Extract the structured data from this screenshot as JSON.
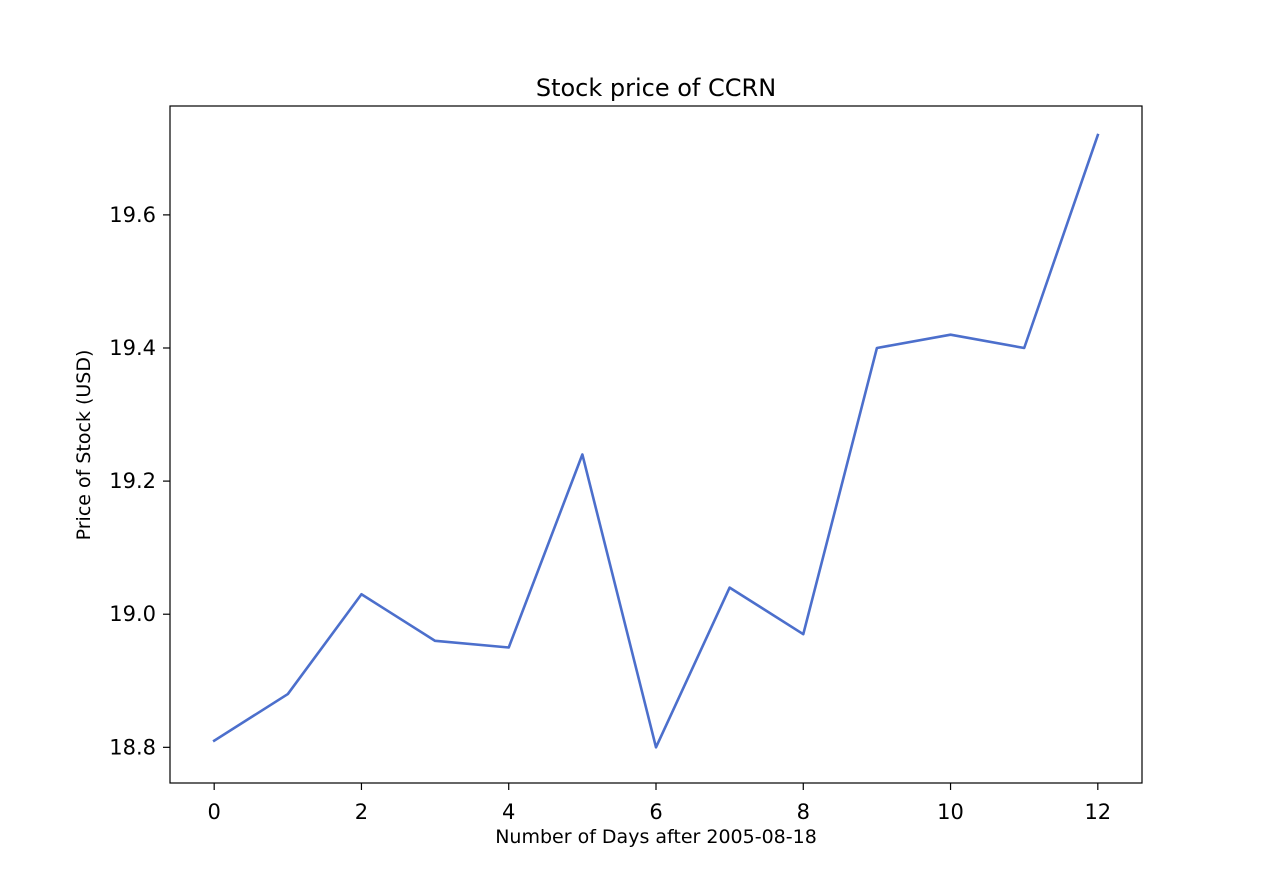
{
  "chart_data": {
    "type": "line",
    "title": "Stock price of CCRN",
    "xlabel": "Number of Days after 2005-08-18",
    "ylabel": "Price of Stock (USD)",
    "xlim": [
      -0.6,
      12.6
    ],
    "ylim": [
      18.7464,
      19.7636
    ],
    "xticks": [
      0,
      2,
      4,
      6,
      8,
      10,
      12
    ],
    "yticks": [
      18.8,
      19.0,
      19.2,
      19.4,
      19.6
    ],
    "grid": false,
    "legend": "none",
    "series": [
      {
        "color": "#4c6fcc",
        "x": [
          0,
          1,
          2,
          3,
          4,
          5,
          6,
          7,
          8,
          9,
          10,
          11,
          12
        ],
        "y": [
          18.81,
          18.88,
          19.03,
          18.96,
          18.95,
          19.24,
          18.8,
          19.04,
          18.97,
          19.4,
          19.42,
          19.4,
          19.72
        ]
      }
    ]
  }
}
